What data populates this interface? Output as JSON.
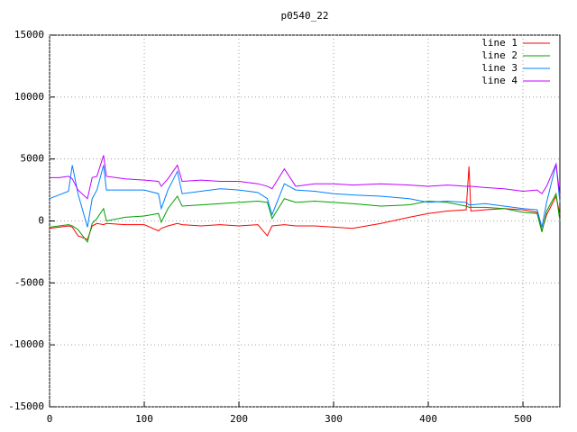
{
  "chart_data": {
    "type": "line",
    "title": "p0540_22",
    "x": [
      0,
      10,
      20,
      24,
      30,
      40,
      45,
      50,
      57,
      60,
      80,
      100,
      115,
      118,
      125,
      135,
      140,
      160,
      180,
      200,
      220,
      230,
      235,
      248,
      260,
      280,
      300,
      320,
      350,
      380,
      400,
      420,
      440,
      443,
      445,
      460,
      480,
      500,
      515,
      520,
      525,
      535,
      539
    ],
    "series": [
      {
        "name": "line 1",
        "color": "#ff0000",
        "values": [
          -600,
          -500,
          -400,
          -500,
          -1200,
          -1500,
          -400,
          -200,
          -300,
          -200,
          -300,
          -300,
          -800,
          -600,
          -400,
          -200,
          -300,
          -400,
          -300,
          -400,
          -300,
          -1200,
          -400,
          -300,
          -400,
          -400,
          -500,
          -600,
          -200,
          300,
          600,
          800,
          900,
          4400,
          800,
          900,
          1000,
          900,
          700,
          -800,
          500,
          2000,
          500
        ]
      },
      {
        "name": "line 2",
        "color": "#00a000",
        "values": [
          -500,
          -400,
          -300,
          -400,
          -700,
          -1700,
          -200,
          200,
          1000,
          0,
          300,
          400,
          600,
          -100,
          1000,
          2000,
          1200,
          1300,
          1400,
          1500,
          1600,
          1500,
          200,
          1800,
          1500,
          1600,
          1500,
          1400,
          1200,
          1300,
          1600,
          1500,
          1200,
          1100,
          1100,
          1100,
          1000,
          700,
          600,
          -900,
          800,
          2200,
          0
        ]
      },
      {
        "name": "line 3",
        "color": "#0080ff",
        "values": [
          1800,
          2100,
          2400,
          4500,
          2200,
          -500,
          1800,
          2500,
          4500,
          2500,
          2500,
          2500,
          2200,
          1000,
          2500,
          4000,
          2200,
          2400,
          2600,
          2500,
          2300,
          1800,
          500,
          3000,
          2500,
          2400,
          2200,
          2100,
          2000,
          1800,
          1500,
          1600,
          1500,
          1300,
          1300,
          1400,
          1200,
          1000,
          900,
          -500,
          1500,
          4600,
          1500
        ]
      },
      {
        "name": "line 4",
        "color": "#c000ff",
        "values": [
          3500,
          3500,
          3600,
          3400,
          2500,
          1800,
          3500,
          3600,
          5300,
          3600,
          3400,
          3300,
          3200,
          2800,
          3400,
          4500,
          3200,
          3300,
          3200,
          3200,
          3000,
          2800,
          2600,
          4200,
          2800,
          3000,
          3000,
          2900,
          3000,
          2900,
          2800,
          2900,
          2800,
          2800,
          2800,
          2700,
          2600,
          2400,
          2500,
          2200,
          2800,
          4600,
          2000
        ]
      }
    ],
    "xlim": [
      0,
      539
    ],
    "xticks": [
      0,
      100,
      200,
      300,
      400,
      500
    ],
    "ylim": [
      -15000,
      15000
    ],
    "yticks": [
      -15000,
      -10000,
      -5000,
      0,
      5000,
      10000,
      15000
    ],
    "grid": true,
    "legend": "top-right"
  }
}
